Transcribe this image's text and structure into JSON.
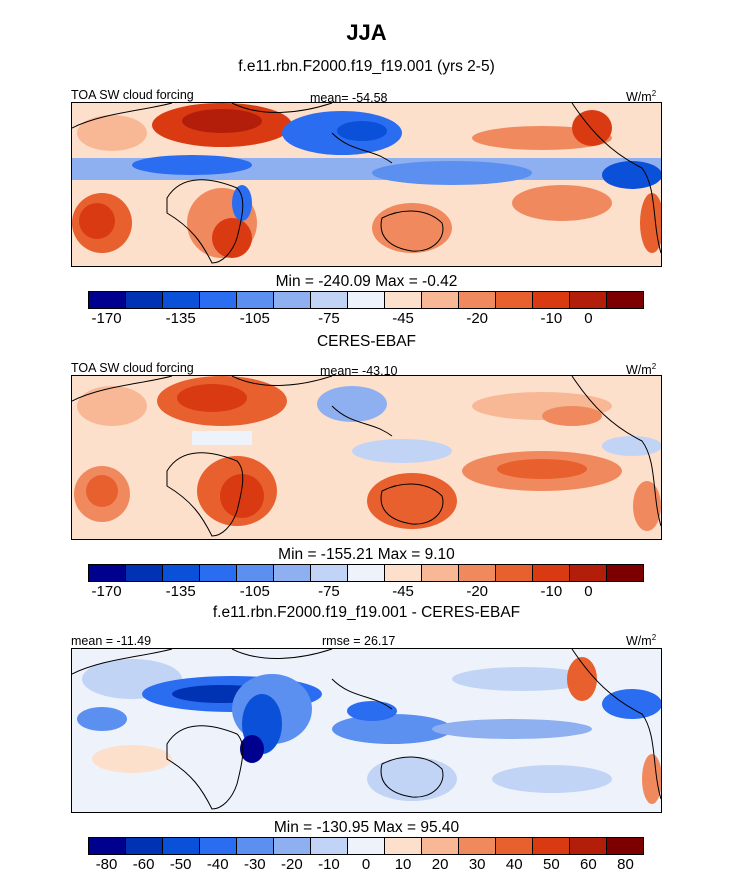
{
  "figure": {
    "title": "JJA",
    "panel_titles": [
      "f.e11.rbn.F2000.f19_f19.001 (yrs 2-5)",
      "CERES-EBAF",
      "f.e11.rbn.F2000.f19_f19.001 - CERES-EBAF"
    ]
  },
  "colors": {
    "abs_palette": [
      "#00008f",
      "#0033b3",
      "#0a50d8",
      "#2b6df0",
      "#5b8ff0",
      "#8eb0f0",
      "#c2d4f5",
      "#eef2fb",
      "#fde0cc",
      "#f8b896",
      "#f08a5e",
      "#e8602e",
      "#d93a12",
      "#b31e0a",
      "#7c0000"
    ],
    "diff_palette": [
      "#00008f",
      "#0033b3",
      "#0a50d8",
      "#2b6df0",
      "#5b8ff0",
      "#8eb0f0",
      "#c2d4f5",
      "#eef2fb",
      "#fde0cc",
      "#f8b896",
      "#f08a5e",
      "#e8602e",
      "#d93a12",
      "#b31e0a",
      "#7c0000"
    ]
  },
  "chart_data": [
    {
      "type": "heatmap",
      "panel": "model",
      "left_label": "TOA SW cloud forcing",
      "center_label": "mean= -54.58",
      "units": "W/m",
      "units_sup": "2",
      "mean": -54.58,
      "min": -240.09,
      "max": -0.42,
      "minmax_label": "Min = -240.09 Max =  -0.42",
      "colorbar_ticks": [
        "-170",
        "-135",
        "-105",
        "-75",
        "-45",
        "-20",
        "-10",
        "0"
      ],
      "colorbar_levels": [
        -170,
        -150,
        -135,
        -120,
        -105,
        -90,
        -75,
        -60,
        -45,
        -30,
        -20,
        -15,
        -10,
        -5,
        0
      ]
    },
    {
      "type": "heatmap",
      "panel": "obs",
      "left_label": "TOA SW cloud forcing",
      "center_label": "mean= -43.10",
      "units": "W/m",
      "units_sup": "2",
      "mean": -43.1,
      "min": -155.21,
      "max": 9.1,
      "minmax_label": "Min = -155.21 Max =   9.10",
      "colorbar_ticks": [
        "-170",
        "-135",
        "-105",
        "-75",
        "-45",
        "-20",
        "-10",
        "0"
      ],
      "colorbar_levels": [
        -170,
        -150,
        -135,
        -120,
        -105,
        -90,
        -75,
        -60,
        -45,
        -30,
        -20,
        -15,
        -10,
        -5,
        0
      ]
    },
    {
      "type": "heatmap",
      "panel": "difference",
      "left_label": "mean = -11.49",
      "center_label": "rmse =  26.17",
      "units": "W/m",
      "units_sup": "2",
      "mean": -11.49,
      "rmse": 26.17,
      "min": -130.95,
      "max": 95.4,
      "minmax_label": "Min = -130.95 Max =  95.40",
      "colorbar_ticks": [
        "-80",
        "-60",
        "-50",
        "-40",
        "-30",
        "-20",
        "-10",
        "0",
        "10",
        "20",
        "30",
        "40",
        "50",
        "60",
        "80"
      ],
      "colorbar_levels": [
        -80,
        -60,
        -50,
        -40,
        -30,
        -20,
        -10,
        0,
        10,
        20,
        30,
        40,
        50,
        60,
        80
      ]
    }
  ]
}
